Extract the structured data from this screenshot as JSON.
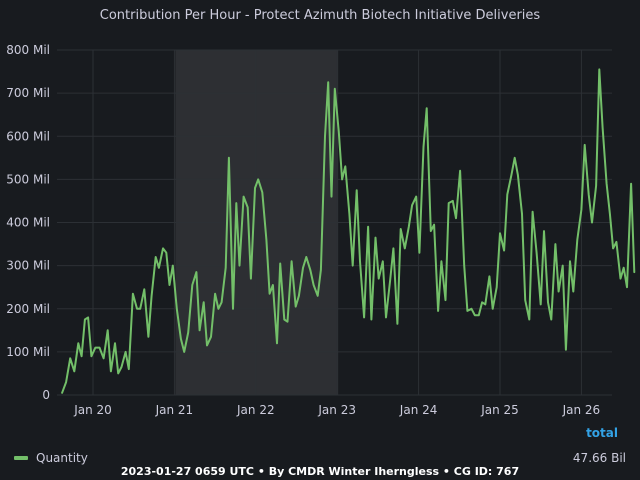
{
  "panel": {
    "title": "Contribution Per Hour - Protect Azimuth Biotech Initiative Deliveries"
  },
  "legend": {
    "series_name": "Quantity",
    "total_header": "total",
    "total_value": "47.66 Bil"
  },
  "footer": {
    "text": "2023-01-27 0659 UTC • By CMDR Winter Iherngless • CG ID: 767"
  },
  "colors": {
    "background": "#181b1f",
    "series": "#73bf69",
    "highlight_region": "#2d2f33",
    "grid": "#2c3035",
    "accent": "#33a2e5"
  },
  "chart_data": {
    "type": "line",
    "title": "Contribution Per Hour - Protect Azimuth Biotech Initiative Deliveries",
    "xlabel": "",
    "ylabel": "",
    "x_unit": "days (Jan 20 = 20.0)",
    "xlim": [
      19.55,
      26.35
    ],
    "ylim": [
      0,
      800
    ],
    "y_ticks": [
      "0",
      "100 Mil",
      "200 Mil",
      "300 Mil",
      "400 Mil",
      "500 Mil",
      "600 Mil",
      "700 Mil",
      "800 Mil"
    ],
    "x_ticks": [
      "Jan 20",
      "Jan 21",
      "Jan 22",
      "Jan 23",
      "Jan 24",
      "Jan 25",
      "Jan 26"
    ],
    "highlight_range": [
      21.0,
      23.0
    ],
    "grid": true,
    "legend_position": "bottom",
    "series": [
      {
        "name": "Quantity",
        "unit": "Mil",
        "points": [
          [
            19.62,
            5
          ],
          [
            19.67,
            30
          ],
          [
            19.72,
            85
          ],
          [
            19.77,
            55
          ],
          [
            19.82,
            120
          ],
          [
            19.86,
            90
          ],
          [
            19.9,
            175
          ],
          [
            19.94,
            180
          ],
          [
            19.98,
            90
          ],
          [
            20.03,
            110
          ],
          [
            20.08,
            110
          ],
          [
            20.13,
            85
          ],
          [
            20.18,
            150
          ],
          [
            20.22,
            55
          ],
          [
            20.27,
            120
          ],
          [
            20.31,
            50
          ],
          [
            20.35,
            65
          ],
          [
            20.4,
            100
          ],
          [
            20.44,
            60
          ],
          [
            20.49,
            235
          ],
          [
            20.54,
            200
          ],
          [
            20.58,
            200
          ],
          [
            20.63,
            245
          ],
          [
            20.68,
            135
          ],
          [
            20.72,
            230
          ],
          [
            20.77,
            320
          ],
          [
            20.81,
            295
          ],
          [
            20.86,
            340
          ],
          [
            20.9,
            330
          ],
          [
            20.94,
            255
          ],
          [
            20.98,
            300
          ],
          [
            21.03,
            200
          ],
          [
            21.08,
            130
          ],
          [
            21.12,
            100
          ],
          [
            21.17,
            145
          ],
          [
            21.22,
            255
          ],
          [
            21.27,
            285
          ],
          [
            21.31,
            150
          ],
          [
            21.36,
            215
          ],
          [
            21.4,
            115
          ],
          [
            21.45,
            135
          ],
          [
            21.5,
            235
          ],
          [
            21.54,
            200
          ],
          [
            21.58,
            215
          ],
          [
            21.63,
            295
          ],
          [
            21.67,
            550
          ],
          [
            21.72,
            200
          ],
          [
            21.76,
            445
          ],
          [
            21.8,
            300
          ],
          [
            21.85,
            460
          ],
          [
            21.9,
            435
          ],
          [
            21.94,
            270
          ],
          [
            21.99,
            480
          ],
          [
            22.03,
            500
          ],
          [
            22.08,
            470
          ],
          [
            22.13,
            360
          ],
          [
            22.17,
            235
          ],
          [
            22.21,
            255
          ],
          [
            22.26,
            120
          ],
          [
            22.3,
            305
          ],
          [
            22.35,
            175
          ],
          [
            22.39,
            170
          ],
          [
            22.44,
            310
          ],
          [
            22.49,
            205
          ],
          [
            22.53,
            230
          ],
          [
            22.58,
            295
          ],
          [
            22.62,
            320
          ],
          [
            22.67,
            290
          ],
          [
            22.71,
            255
          ],
          [
            22.76,
            230
          ],
          [
            22.8,
            290
          ],
          [
            22.85,
            600
          ],
          [
            22.89,
            725
          ],
          [
            22.93,
            460
          ],
          [
            22.97,
            710
          ],
          [
            23.02,
            610
          ],
          [
            23.06,
            500
          ],
          [
            23.1,
            530
          ],
          [
            23.15,
            420
          ],
          [
            23.19,
            300
          ],
          [
            23.24,
            475
          ],
          [
            23.28,
            310
          ],
          [
            23.33,
            180
          ],
          [
            23.38,
            390
          ],
          [
            23.42,
            175
          ],
          [
            23.47,
            365
          ],
          [
            23.51,
            270
          ],
          [
            23.56,
            310
          ],
          [
            23.6,
            180
          ],
          [
            23.65,
            265
          ],
          [
            23.69,
            340
          ],
          [
            23.74,
            165
          ],
          [
            23.78,
            385
          ],
          [
            23.83,
            340
          ],
          [
            23.88,
            390
          ],
          [
            23.92,
            440
          ],
          [
            23.97,
            460
          ],
          [
            24.01,
            330
          ],
          [
            24.06,
            575
          ],
          [
            24.1,
            665
          ],
          [
            24.15,
            380
          ],
          [
            24.19,
            395
          ],
          [
            24.24,
            195
          ],
          [
            24.28,
            310
          ],
          [
            24.33,
            220
          ],
          [
            24.37,
            445
          ],
          [
            24.42,
            450
          ],
          [
            24.46,
            410
          ],
          [
            24.51,
            520
          ],
          [
            24.56,
            300
          ],
          [
            24.6,
            195
          ],
          [
            24.65,
            200
          ],
          [
            24.69,
            185
          ],
          [
            24.74,
            185
          ],
          [
            24.78,
            215
          ],
          [
            24.82,
            210
          ],
          [
            24.87,
            275
          ],
          [
            24.91,
            200
          ],
          [
            24.96,
            250
          ],
          [
            25.0,
            375
          ],
          [
            25.05,
            335
          ],
          [
            25.09,
            465
          ],
          [
            25.14,
            510
          ],
          [
            25.18,
            550
          ],
          [
            25.22,
            510
          ],
          [
            25.27,
            420
          ],
          [
            25.31,
            220
          ],
          [
            25.36,
            175
          ],
          [
            25.4,
            425
          ],
          [
            25.45,
            330
          ],
          [
            25.5,
            210
          ],
          [
            25.54,
            380
          ],
          [
            25.59,
            215
          ],
          [
            25.63,
            175
          ],
          [
            25.68,
            350
          ],
          [
            25.72,
            240
          ],
          [
            25.77,
            300
          ],
          [
            25.81,
            105
          ],
          [
            25.86,
            310
          ],
          [
            25.9,
            240
          ],
          [
            25.95,
            360
          ],
          [
            26.0,
            430
          ],
          [
            26.04,
            580
          ],
          [
            26.09,
            465
          ],
          [
            26.13,
            400
          ],
          [
            26.18,
            485
          ],
          [
            26.22,
            755
          ],
          [
            26.26,
            620
          ],
          [
            26.31,
            490
          ],
          [
            26.35,
            420
          ],
          [
            26.39,
            340
          ],
          [
            26.43,
            355
          ],
          [
            26.48,
            270
          ],
          [
            26.52,
            295
          ],
          [
            26.56,
            250
          ],
          [
            26.61,
            490
          ],
          [
            26.65,
            285
          ]
        ]
      }
    ]
  }
}
